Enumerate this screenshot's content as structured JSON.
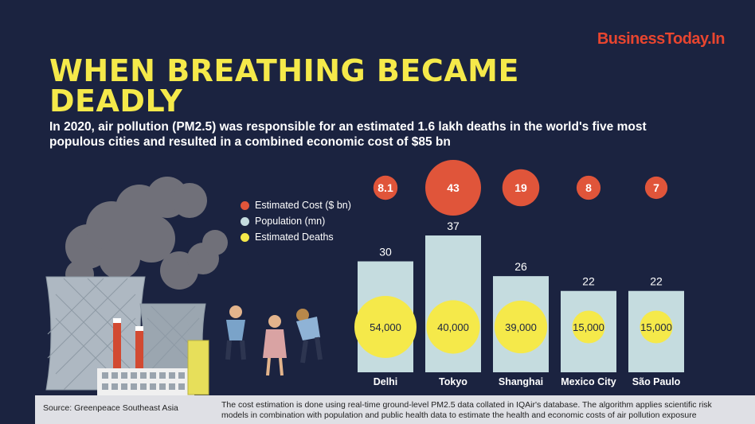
{
  "brand": "BusinessToday.In",
  "title": "WHEN BREATHING BECAME DEADLY",
  "subtitle": "In 2020, air pollution (PM2.5) was responsible for an estimated 1.6 lakh deaths in the world's five most populous cities and resulted in a combined economic cost of $85 bn",
  "legend": [
    {
      "label": "Estimated Cost ($ bn)",
      "color": "#e0553a"
    },
    {
      "label": "Population (mn)",
      "color": "#c5dcdf"
    },
    {
      "label": "Estimated Deaths",
      "color": "#f5e94a"
    }
  ],
  "colors": {
    "background": "#1b2340",
    "cost": "#e0553a",
    "population": "#c5dcdf",
    "deaths": "#f5e94a",
    "title": "#f5e94a",
    "brand": "#e8452f"
  },
  "chart_data": {
    "type": "bar",
    "categories": [
      "Delhi",
      "Tokyo",
      "Shanghai",
      "Mexico City",
      "São Paulo"
    ],
    "series": [
      {
        "name": "Estimated Cost ($ bn)",
        "values": [
          8.1,
          43,
          19,
          8,
          7
        ],
        "labels": [
          "8.1",
          "43",
          "19",
          "8",
          "7"
        ]
      },
      {
        "name": "Population (mn)",
        "values": [
          30,
          37,
          26,
          22,
          22
        ],
        "labels": [
          "30",
          "37",
          "26",
          "22",
          "22"
        ]
      },
      {
        "name": "Estimated Deaths",
        "values": [
          54000,
          40000,
          39000,
          15000,
          15000
        ],
        "labels": [
          "54,000",
          "40,000",
          "39,000",
          "15,000",
          "15,000"
        ]
      }
    ]
  },
  "footer": {
    "source": "Source: Greenpeace Southeast Asia",
    "note": "The cost estimation is done using real-time ground-level PM2.5 data collated in IQAir's database. The algorithm applies scientific risk models in combination with population and public health data to estimate the health and economic costs of air pollution exposure"
  }
}
